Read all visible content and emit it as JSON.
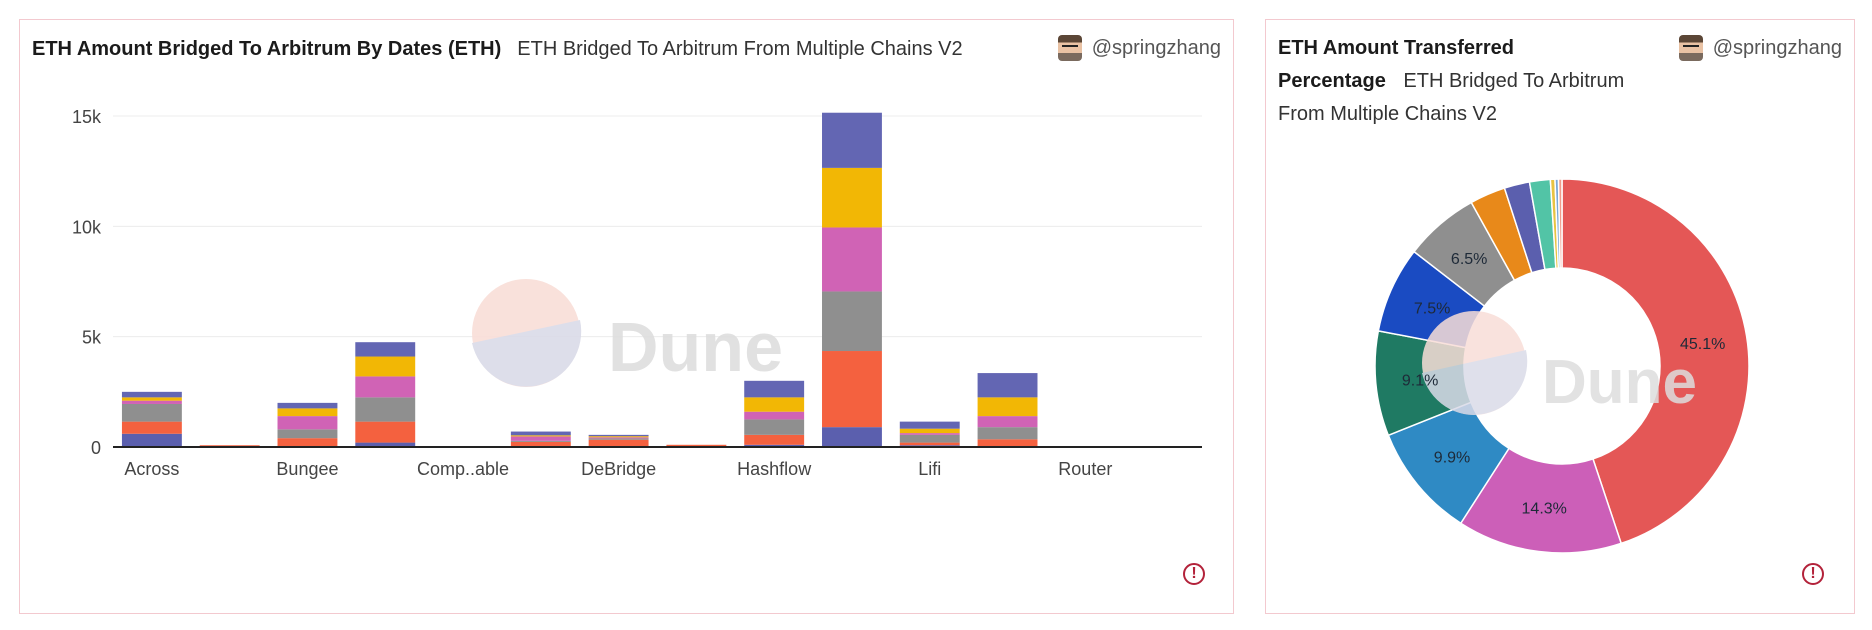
{
  "left_card": {
    "title": "ETH Amount Bridged To Arbitrum By Dates (ETH)",
    "subtitle": "ETH Bridged To Arbitrum From Multiple Chains V2",
    "author": "@springzhang",
    "watermark": "Dune"
  },
  "right_card": {
    "title_line1": "ETH Amount Transferred",
    "title_line2": "Percentage",
    "subtitle": "ETH Bridged To Arbitrum From Multiple Chains V2",
    "author": "@springzhang",
    "watermark": "Dune"
  },
  "chart_data": [
    {
      "type": "bar",
      "stacked": true,
      "categories": [
        "Across",
        "",
        "Bungee",
        "",
        "Comp..able",
        "",
        "DeBridge",
        "",
        "Hashflow",
        "",
        "Lifi",
        "",
        "Router",
        ""
      ],
      "ylim": [
        0,
        15500
      ],
      "yticks": [
        {
          "value": 0,
          "label": "0"
        },
        {
          "value": 5000,
          "label": "5k"
        },
        {
          "value": 10000,
          "label": "10k"
        },
        {
          "value": 15000,
          "label": "15k"
        }
      ],
      "grid": true,
      "series": [
        {
          "color": "#5b5fae",
          "values": [
            600,
            0,
            0,
            200,
            0,
            30,
            30,
            0,
            100,
            900,
            80,
            0,
            0,
            0
          ]
        },
        {
          "color": "#f4613f",
          "values": [
            550,
            80,
            400,
            950,
            0,
            200,
            300,
            100,
            450,
            3450,
            120,
            350,
            40,
            0
          ]
        },
        {
          "color": "#8f8f8f",
          "values": [
            800,
            0,
            400,
            1100,
            0,
            50,
            60,
            0,
            700,
            2700,
            350,
            550,
            0,
            0
          ]
        },
        {
          "color": "#d063b5",
          "values": [
            150,
            0,
            600,
            950,
            0,
            200,
            50,
            0,
            350,
            2900,
            80,
            500,
            0,
            0
          ]
        },
        {
          "color": "#f2b705",
          "values": [
            150,
            0,
            350,
            900,
            0,
            50,
            50,
            0,
            650,
            2700,
            200,
            850,
            0,
            0
          ]
        },
        {
          "color": "#6366b3",
          "values": [
            250,
            0,
            250,
            650,
            0,
            170,
            60,
            0,
            750,
            2500,
            320,
            1100,
            0,
            0
          ]
        }
      ]
    },
    {
      "type": "pie",
      "donut": true,
      "values": [
        45.1,
        14.3,
        9.9,
        9.1,
        7.5,
        6.5,
        3.1,
        2.2,
        1.8,
        0.4,
        0.3,
        0.3
      ],
      "labels": [
        "45.1%",
        "14.3%",
        "9.9%",
        "9.1%",
        "7.5%",
        "6.5%",
        "",
        "",
        "",
        "",
        "",
        ""
      ],
      "colors": [
        "#e45756",
        "#cc5fb8",
        "#2f8ac4",
        "#1f7a63",
        "#1a4bc2",
        "#8f8f8f",
        "#e8891a",
        "#5b5fae",
        "#52c4a6",
        "#e9c342",
        "#7aa8d8",
        "#f09a8a"
      ]
    }
  ]
}
